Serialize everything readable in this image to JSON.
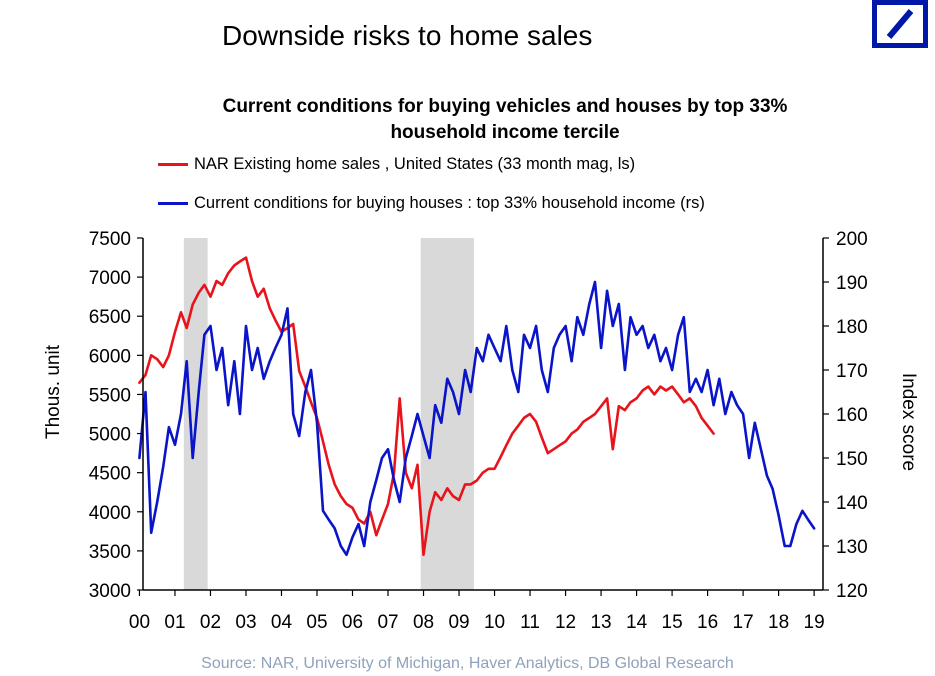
{
  "slide": {
    "title": "Downside risks to home sales",
    "source": "Source: NAR, University of Michigan, Haver Analytics, DB Global Research",
    "logo": "db-slash-logo"
  },
  "chart_data": {
    "type": "line",
    "title_lines": [
      "Current conditions for buying  vehicles and houses by top 33%",
      "household income tercile"
    ],
    "ylabel_left": "Thous. unit",
    "ylabel_right": "Index score",
    "x_range": [
      2000.0,
      2019.0
    ],
    "y_left_range": [
      3000,
      7500
    ],
    "y_right_range": [
      120,
      200
    ],
    "x_tick_values": [
      2000,
      2001,
      2002,
      2003,
      2004,
      2005,
      2006,
      2007,
      2008,
      2009,
      2010,
      2011,
      2012,
      2013,
      2014,
      2015,
      2016,
      2017,
      2018,
      2019
    ],
    "x_tick_labels": [
      "00",
      "01",
      "02",
      "03",
      "04",
      "05",
      "06",
      "07",
      "08",
      "09",
      "10",
      "11",
      "12",
      "13",
      "14",
      "15",
      "16",
      "17",
      "18",
      "19"
    ],
    "y_left_ticks": [
      3000,
      3500,
      4000,
      4500,
      5000,
      5500,
      6000,
      6500,
      7000,
      7500
    ],
    "y_right_ticks": [
      120,
      130,
      140,
      150,
      160,
      170,
      180,
      190,
      200
    ],
    "recessions": [
      [
        2001.25,
        2001.92
      ],
      [
        2007.92,
        2009.42
      ]
    ],
    "recession_color": "#d9d9d9",
    "series": [
      {
        "name": "NAR Existing home sales , United States (33 month mag, ls)",
        "axis": "left",
        "color": "#e8141c",
        "x": [
          2000.0,
          2000.17,
          2000.33,
          2000.5,
          2000.67,
          2000.83,
          2001.0,
          2001.17,
          2001.33,
          2001.5,
          2001.67,
          2001.83,
          2002.0,
          2002.17,
          2002.33,
          2002.5,
          2002.67,
          2002.83,
          2003.0,
          2003.17,
          2003.33,
          2003.5,
          2003.67,
          2003.83,
          2004.0,
          2004.17,
          2004.33,
          2004.5,
          2004.67,
          2004.83,
          2005.0,
          2005.17,
          2005.33,
          2005.5,
          2005.67,
          2005.83,
          2006.0,
          2006.17,
          2006.33,
          2006.5,
          2006.67,
          2006.83,
          2007.0,
          2007.17,
          2007.33,
          2007.5,
          2007.67,
          2007.83,
          2008.0,
          2008.17,
          2008.33,
          2008.5,
          2008.67,
          2008.83,
          2009.0,
          2009.17,
          2009.33,
          2009.5,
          2009.67,
          2009.83,
          2010.0,
          2010.17,
          2010.33,
          2010.5,
          2010.67,
          2010.83,
          2011.0,
          2011.17,
          2011.33,
          2011.5,
          2011.67,
          2011.83,
          2012.0,
          2012.17,
          2012.33,
          2012.5,
          2012.67,
          2012.83,
          2013.0,
          2013.17,
          2013.33,
          2013.5,
          2013.67,
          2013.83,
          2014.0,
          2014.17,
          2014.33,
          2014.5,
          2014.67,
          2014.83,
          2015.0,
          2015.17,
          2015.33,
          2015.5,
          2015.67,
          2015.83,
          2016.0,
          2016.17
        ],
        "y": [
          5650,
          5750,
          6000,
          5950,
          5850,
          6000,
          6300,
          6550,
          6350,
          6650,
          6800,
          6900,
          6750,
          6950,
          6900,
          7050,
          7150,
          7200,
          7250,
          6950,
          6750,
          6850,
          6600,
          6450,
          6300,
          6350,
          6400,
          5800,
          5600,
          5400,
          5200,
          4900,
          4600,
          4350,
          4200,
          4100,
          4050,
          3900,
          3850,
          4000,
          3700,
          3900,
          4100,
          4500,
          5450,
          4500,
          4300,
          4600,
          3450,
          4000,
          4250,
          4150,
          4300,
          4200,
          4150,
          4350,
          4350,
          4400,
          4500,
          4550,
          4550,
          4700,
          4850,
          5000,
          5100,
          5200,
          5250,
          5150,
          4950,
          4750,
          4800,
          4850,
          4900,
          5000,
          5050,
          5150,
          5200,
          5250,
          5350,
          5450,
          4800,
          5350,
          5300,
          5400,
          5450,
          5550,
          5600,
          5500,
          5600,
          5550,
          5600,
          5500,
          5400,
          5450,
          5350,
          5200,
          5100,
          5000
        ]
      },
      {
        "name": "Current conditions for buying houses : top 33% household income (rs)",
        "axis": "right",
        "color": "#0a14c8",
        "x": [
          2000.0,
          2000.17,
          2000.33,
          2000.5,
          2000.67,
          2000.83,
          2001.0,
          2001.17,
          2001.33,
          2001.5,
          2001.67,
          2001.83,
          2002.0,
          2002.17,
          2002.33,
          2002.5,
          2002.67,
          2002.83,
          2003.0,
          2003.17,
          2003.33,
          2003.5,
          2003.67,
          2003.83,
          2004.0,
          2004.17,
          2004.33,
          2004.5,
          2004.67,
          2004.83,
          2005.0,
          2005.17,
          2005.33,
          2005.5,
          2005.67,
          2005.83,
          2006.0,
          2006.17,
          2006.33,
          2006.5,
          2006.67,
          2006.83,
          2007.0,
          2007.17,
          2007.33,
          2007.5,
          2007.67,
          2007.83,
          2008.0,
          2008.17,
          2008.33,
          2008.5,
          2008.67,
          2008.83,
          2009.0,
          2009.17,
          2009.33,
          2009.5,
          2009.67,
          2009.83,
          2010.0,
          2010.17,
          2010.33,
          2010.5,
          2010.67,
          2010.83,
          2011.0,
          2011.17,
          2011.33,
          2011.5,
          2011.67,
          2011.83,
          2012.0,
          2012.17,
          2012.33,
          2012.5,
          2012.67,
          2012.83,
          2013.0,
          2013.17,
          2013.33,
          2013.5,
          2013.67,
          2013.83,
          2014.0,
          2014.17,
          2014.33,
          2014.5,
          2014.67,
          2014.83,
          2015.0,
          2015.17,
          2015.33,
          2015.5,
          2015.67,
          2015.83,
          2016.0,
          2016.17,
          2016.33,
          2016.5,
          2016.67,
          2016.83,
          2017.0,
          2017.17,
          2017.33,
          2017.5,
          2017.67,
          2017.83,
          2018.0,
          2018.17,
          2018.33,
          2018.5,
          2018.67,
          2018.83,
          2019.0
        ],
        "y": [
          150,
          165,
          133,
          140,
          148,
          157,
          153,
          160,
          172,
          150,
          165,
          178,
          180,
          170,
          175,
          162,
          172,
          160,
          180,
          170,
          175,
          168,
          172,
          175,
          178,
          184,
          160,
          155,
          165,
          170,
          158,
          138,
          136,
          134,
          130,
          128,
          132,
          135,
          130,
          140,
          145,
          150,
          152,
          145,
          140,
          150,
          155,
          160,
          155,
          150,
          162,
          158,
          168,
          165,
          160,
          170,
          165,
          175,
          172,
          178,
          175,
          172,
          180,
          170,
          165,
          178,
          175,
          180,
          170,
          165,
          175,
          178,
          180,
          172,
          182,
          178,
          185,
          190,
          175,
          188,
          180,
          185,
          170,
          182,
          178,
          180,
          175,
          178,
          172,
          175,
          170,
          178,
          182,
          165,
          168,
          165,
          170,
          162,
          168,
          160,
          165,
          162,
          160,
          150,
          158,
          152,
          146,
          143,
          137,
          130,
          130,
          135,
          138,
          136,
          134
        ]
      }
    ]
  }
}
